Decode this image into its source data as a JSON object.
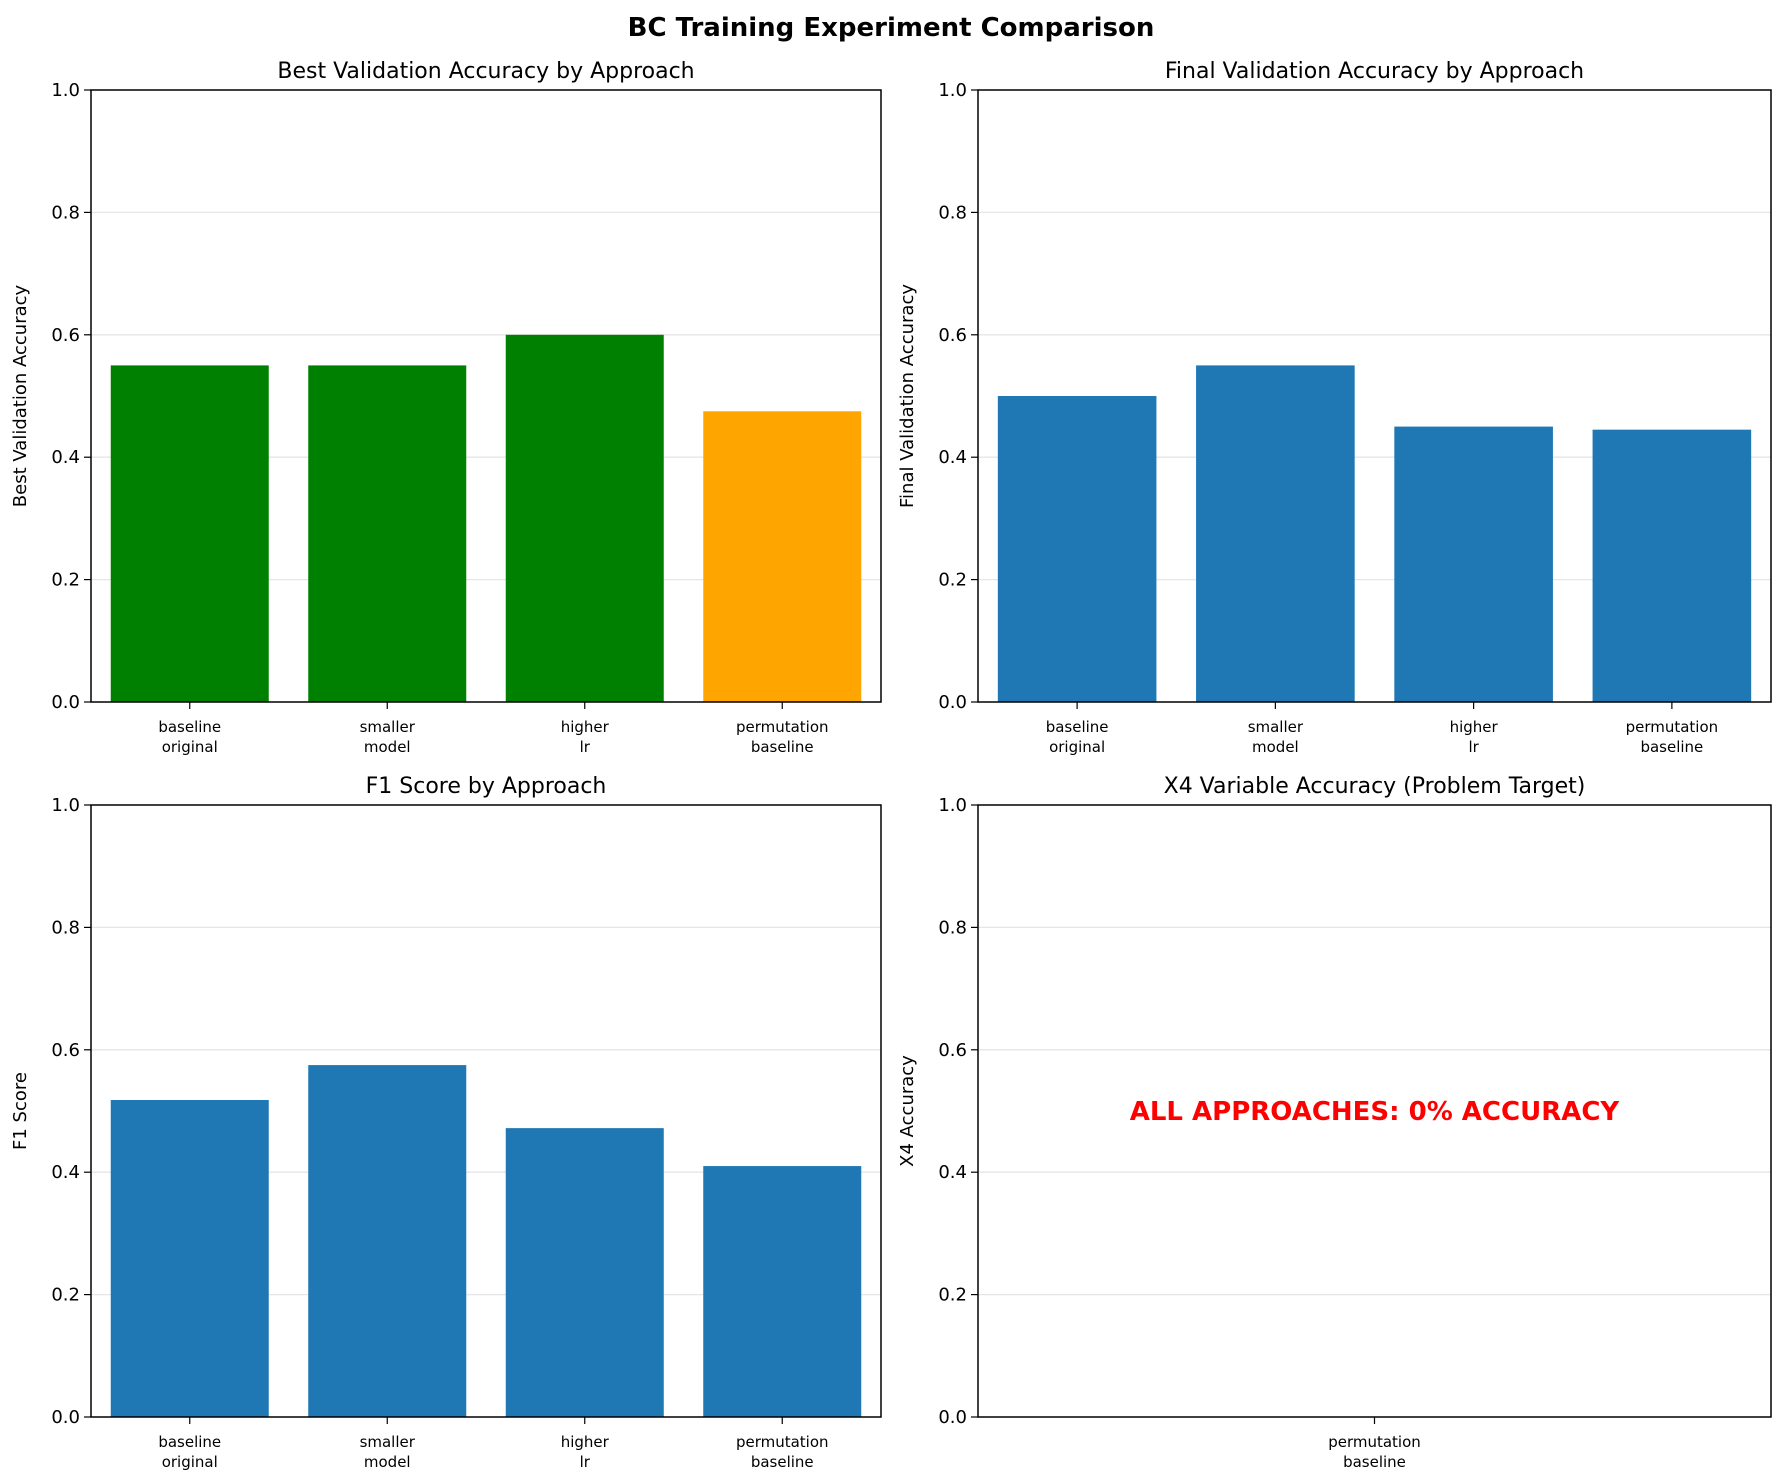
{
  "figure": {
    "title": "BC Training Experiment Comparison"
  },
  "chart_data": [
    {
      "type": "bar",
      "title": "Best Validation Accuracy by Approach",
      "xlabel": "",
      "ylabel": "Best Validation Accuracy",
      "ylim": [
        0,
        1.0
      ],
      "yticks": [
        "0.0",
        "0.2",
        "0.4",
        "0.6",
        "0.8",
        "1.0"
      ],
      "grid": "y",
      "categories": [
        [
          "baseline",
          "original"
        ],
        [
          "smaller",
          "model"
        ],
        [
          "higher",
          "lr"
        ],
        [
          "permutation",
          "baseline"
        ]
      ],
      "values": [
        0.55,
        0.55,
        0.6,
        0.475
      ],
      "bar_colors": [
        "#008000",
        "#008000",
        "#008000",
        "#ffa500"
      ]
    },
    {
      "type": "bar",
      "title": "Final Validation Accuracy by Approach",
      "xlabel": "",
      "ylabel": "Final Validation Accuracy",
      "ylim": [
        0,
        1.0
      ],
      "yticks": [
        "0.0",
        "0.2",
        "0.4",
        "0.6",
        "0.8",
        "1.0"
      ],
      "grid": "y",
      "categories": [
        [
          "baseline",
          "original"
        ],
        [
          "smaller",
          "model"
        ],
        [
          "higher",
          "lr"
        ],
        [
          "permutation",
          "baseline"
        ]
      ],
      "values": [
        0.5,
        0.55,
        0.45,
        0.445
      ],
      "bar_colors": [
        "#1f77b4",
        "#1f77b4",
        "#1f77b4",
        "#1f77b4"
      ]
    },
    {
      "type": "bar",
      "title": "F1 Score by Approach",
      "xlabel": "",
      "ylabel": "F1 Score",
      "ylim": [
        0,
        1.0
      ],
      "yticks": [
        "0.0",
        "0.2",
        "0.4",
        "0.6",
        "0.8",
        "1.0"
      ],
      "grid": "y",
      "categories": [
        [
          "baseline",
          "original"
        ],
        [
          "smaller",
          "model"
        ],
        [
          "higher",
          "lr"
        ],
        [
          "permutation",
          "baseline"
        ]
      ],
      "values": [
        0.518,
        0.575,
        0.472,
        0.41
      ],
      "bar_colors": [
        "#1f77b4",
        "#1f77b4",
        "#1f77b4",
        "#1f77b4"
      ]
    },
    {
      "type": "bar",
      "title": "X4 Variable Accuracy (Problem Target)",
      "xlabel": "",
      "ylabel": "X4 Accuracy",
      "ylim": [
        0,
        1.0
      ],
      "yticks": [
        "0.0",
        "0.2",
        "0.4",
        "0.6",
        "0.8",
        "1.0"
      ],
      "grid": "y",
      "categories": [
        [
          "permutation",
          "baseline"
        ]
      ],
      "values": [
        0
      ],
      "bar_colors": [
        "#1f77b4"
      ],
      "annotation": {
        "text": "ALL APPROACHES: 0% ACCURACY",
        "color": "#ff0000",
        "x_index": 0,
        "y": 0.5
      }
    }
  ]
}
